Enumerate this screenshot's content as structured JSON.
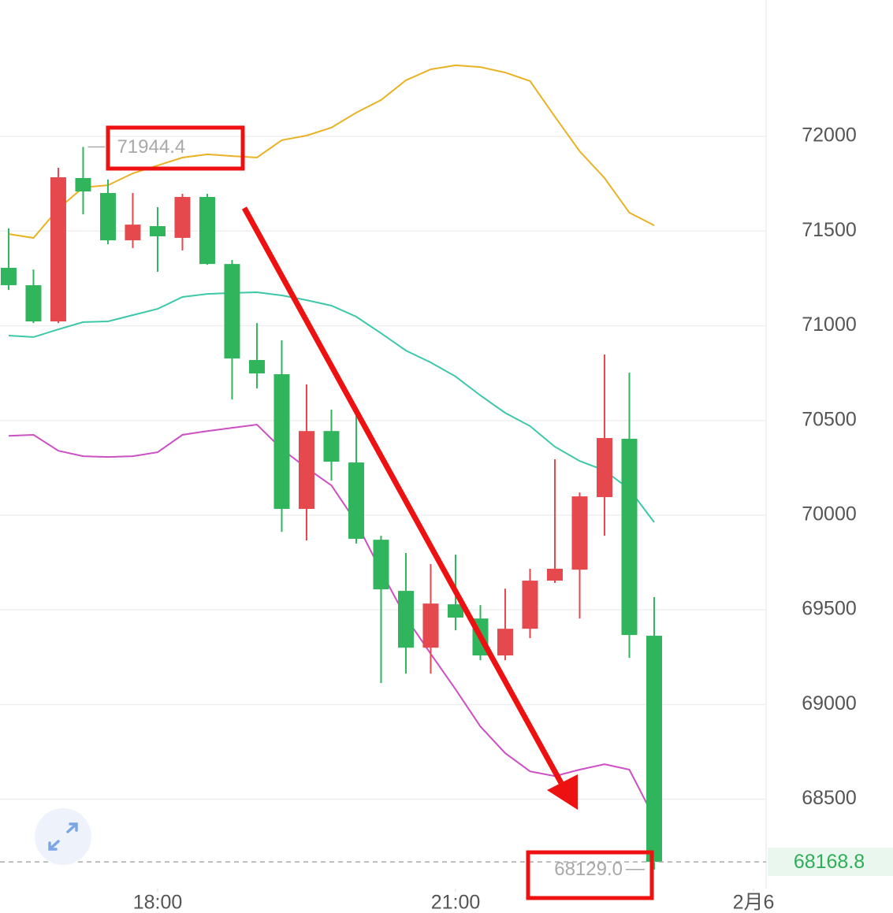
{
  "chart_data": {
    "type": "candlestick",
    "x": [
      16.5,
      16.75,
      17,
      17.25,
      17.5,
      17.75,
      18,
      18.25,
      18.5,
      18.75,
      19,
      19.25,
      19.5,
      19.75,
      20,
      20.25,
      20.5,
      20.75,
      21,
      21.25,
      21.5,
      21.75,
      22,
      22.25,
      22.5,
      22.75,
      23
    ],
    "open": [
      71306,
      71214,
      71023,
      71780,
      71701,
      71451,
      71526,
      71464,
      71680,
      71326,
      70819,
      70744,
      70033,
      70444,
      70278,
      69870,
      69600,
      69300,
      69529,
      69454,
      69259,
      69400,
      69654,
      69712,
      70095,
      70403,
      69363
    ],
    "high": [
      71514,
      71297,
      71834,
      71944.4,
      71772,
      71701,
      71626,
      71697,
      71697,
      71347,
      71014,
      70923,
      70690,
      70557,
      70524,
      69891,
      69800,
      69741,
      69791,
      69525,
      69612,
      69717,
      70295,
      70120,
      70848,
      70752,
      69567
    ],
    "low": [
      71189,
      71014,
      71014,
      71588,
      71430,
      71410,
      71285,
      71397,
      71322,
      70611,
      70669,
      69912,
      69866,
      70182,
      69850,
      69113,
      69163,
      69163,
      69392,
      69234,
      69234,
      69350,
      69642,
      69454,
      69891,
      69246,
      68129
    ],
    "close": [
      71214,
      71023,
      71784,
      71709,
      71451,
      71534,
      71472,
      71680,
      71326,
      70827,
      70748,
      70033,
      70444,
      70282,
      69875,
      69608,
      69300,
      69533,
      69459,
      69259,
      69400,
      69654,
      69717,
      70099,
      70407,
      69367,
      68168.8
    ],
    "up_color": "#e5484d",
    "down_color": "#30b55c",
    "lines": [
      {
        "color": "#e8b224",
        "values": [
          71484,
          71464,
          71618,
          71730,
          71742,
          71805,
          71846,
          71888,
          71905,
          71896,
          71888,
          71980,
          72004,
          72046,
          72125,
          72192,
          72296,
          72354,
          72375,
          72366,
          72337,
          72292,
          72104,
          71921,
          71780,
          71597,
          71530
        ]
      },
      {
        "color": "#3cc7a8",
        "values": [
          70948,
          70940,
          70981,
          71019,
          71023,
          71056,
          71089,
          71152,
          71168,
          71173,
          71177,
          71160,
          71135,
          71106,
          71048,
          70960,
          70869,
          70806,
          70732,
          70632,
          70540,
          70470,
          70361,
          70286,
          70236,
          70137,
          69962
        ]
      },
      {
        "color": "#cc4fc4",
        "values": [
          70419,
          70424,
          70340,
          70311,
          70307,
          70311,
          70332,
          70424,
          70444,
          70461,
          70478,
          70349,
          70249,
          70157,
          69962,
          69704,
          69459,
          69267,
          69080,
          68884,
          68743,
          68647,
          68622,
          68656,
          68685,
          68656,
          68402
        ]
      }
    ],
    "xlim": [
      16.413,
      24.127
    ],
    "xticks": [
      {
        "value": 18,
        "label": "18:00"
      },
      {
        "value": 21,
        "label": "21:00"
      },
      {
        "value": 24,
        "label": "2月6"
      }
    ],
    "ylim": [
      68028,
      72720
    ],
    "yticks": [
      68500,
      69000,
      69500,
      70000,
      70500,
      71000,
      71500,
      72000
    ],
    "grid": true,
    "high_label": 71944.4,
    "low_label": {
      "value": 68129,
      "label": "68129.0"
    },
    "last_price": 68168.8
  }
}
